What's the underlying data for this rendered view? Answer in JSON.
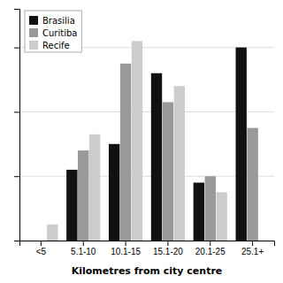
{
  "chart_data": {
    "type": "bar",
    "categories": [
      "<5",
      "5.1-10",
      "10.1-15",
      "15.1-20",
      "20.1-25",
      "25.1+"
    ],
    "series": [
      {
        "name": "Brasilia",
        "color": "#111111",
        "values": [
          0,
          22,
          30,
          52,
          18,
          60
        ]
      },
      {
        "name": "Curitiba",
        "color": "#999999",
        "values": [
          0,
          28,
          55,
          43,
          20,
          35
        ]
      },
      {
        "name": "Recife",
        "color": "#cccccc",
        "values": [
          5,
          33,
          62,
          48,
          15,
          0
        ]
      }
    ],
    "x_label": "Kilometres from city centre",
    "ylim": [
      0,
      72
    ],
    "yticks": [
      20,
      40,
      60
    ],
    "grid": true,
    "legend": "upper left",
    "tick_labels": "x"
  }
}
